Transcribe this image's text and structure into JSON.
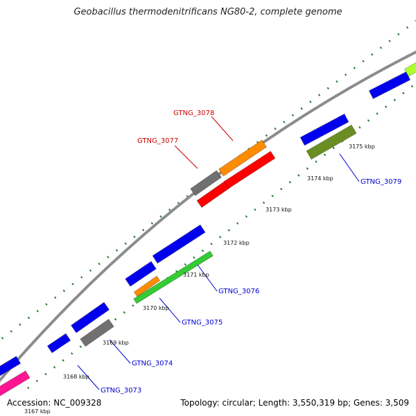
{
  "title": "Geobacillus thermodenitrificans NG80-2, complete genome",
  "footer": {
    "accession": "Accession: NC_009328",
    "summary": "Topology: circular; Length: 3,550,319 bp; Genes: 3,509"
  },
  "colors": {
    "backbone": "#8c8c8c",
    "tick": "#2e7d32",
    "label_red": "#cc0000",
    "label_blue": "#0000cc",
    "blue": "#0000ee",
    "gray": "#707070",
    "orange": "#ff8c00",
    "red": "#ff0000",
    "olive": "#6b8e23",
    "green": "#33cc33",
    "pink": "#ff1493",
    "lime": "#adff2f"
  },
  "kbp_labels": [
    "3167 kbp",
    "3168 kbp",
    "3169 kbp",
    "3170 kbp",
    "3171 kbp",
    "3172 kbp",
    "3173 kbp",
    "3174 kbp",
    "3175 kbp"
  ],
  "gene_labels": [
    {
      "name": "GTNG_3078",
      "color": "red"
    },
    {
      "name": "GTNG_3077",
      "color": "red"
    },
    {
      "name": "GTNG_3079",
      "color": "blue"
    },
    {
      "name": "GTNG_3076",
      "color": "blue"
    },
    {
      "name": "GTNG_3075",
      "color": "blue"
    },
    {
      "name": "GTNG_3074",
      "color": "blue"
    },
    {
      "name": "GTNG_3073",
      "color": "blue"
    }
  ]
}
